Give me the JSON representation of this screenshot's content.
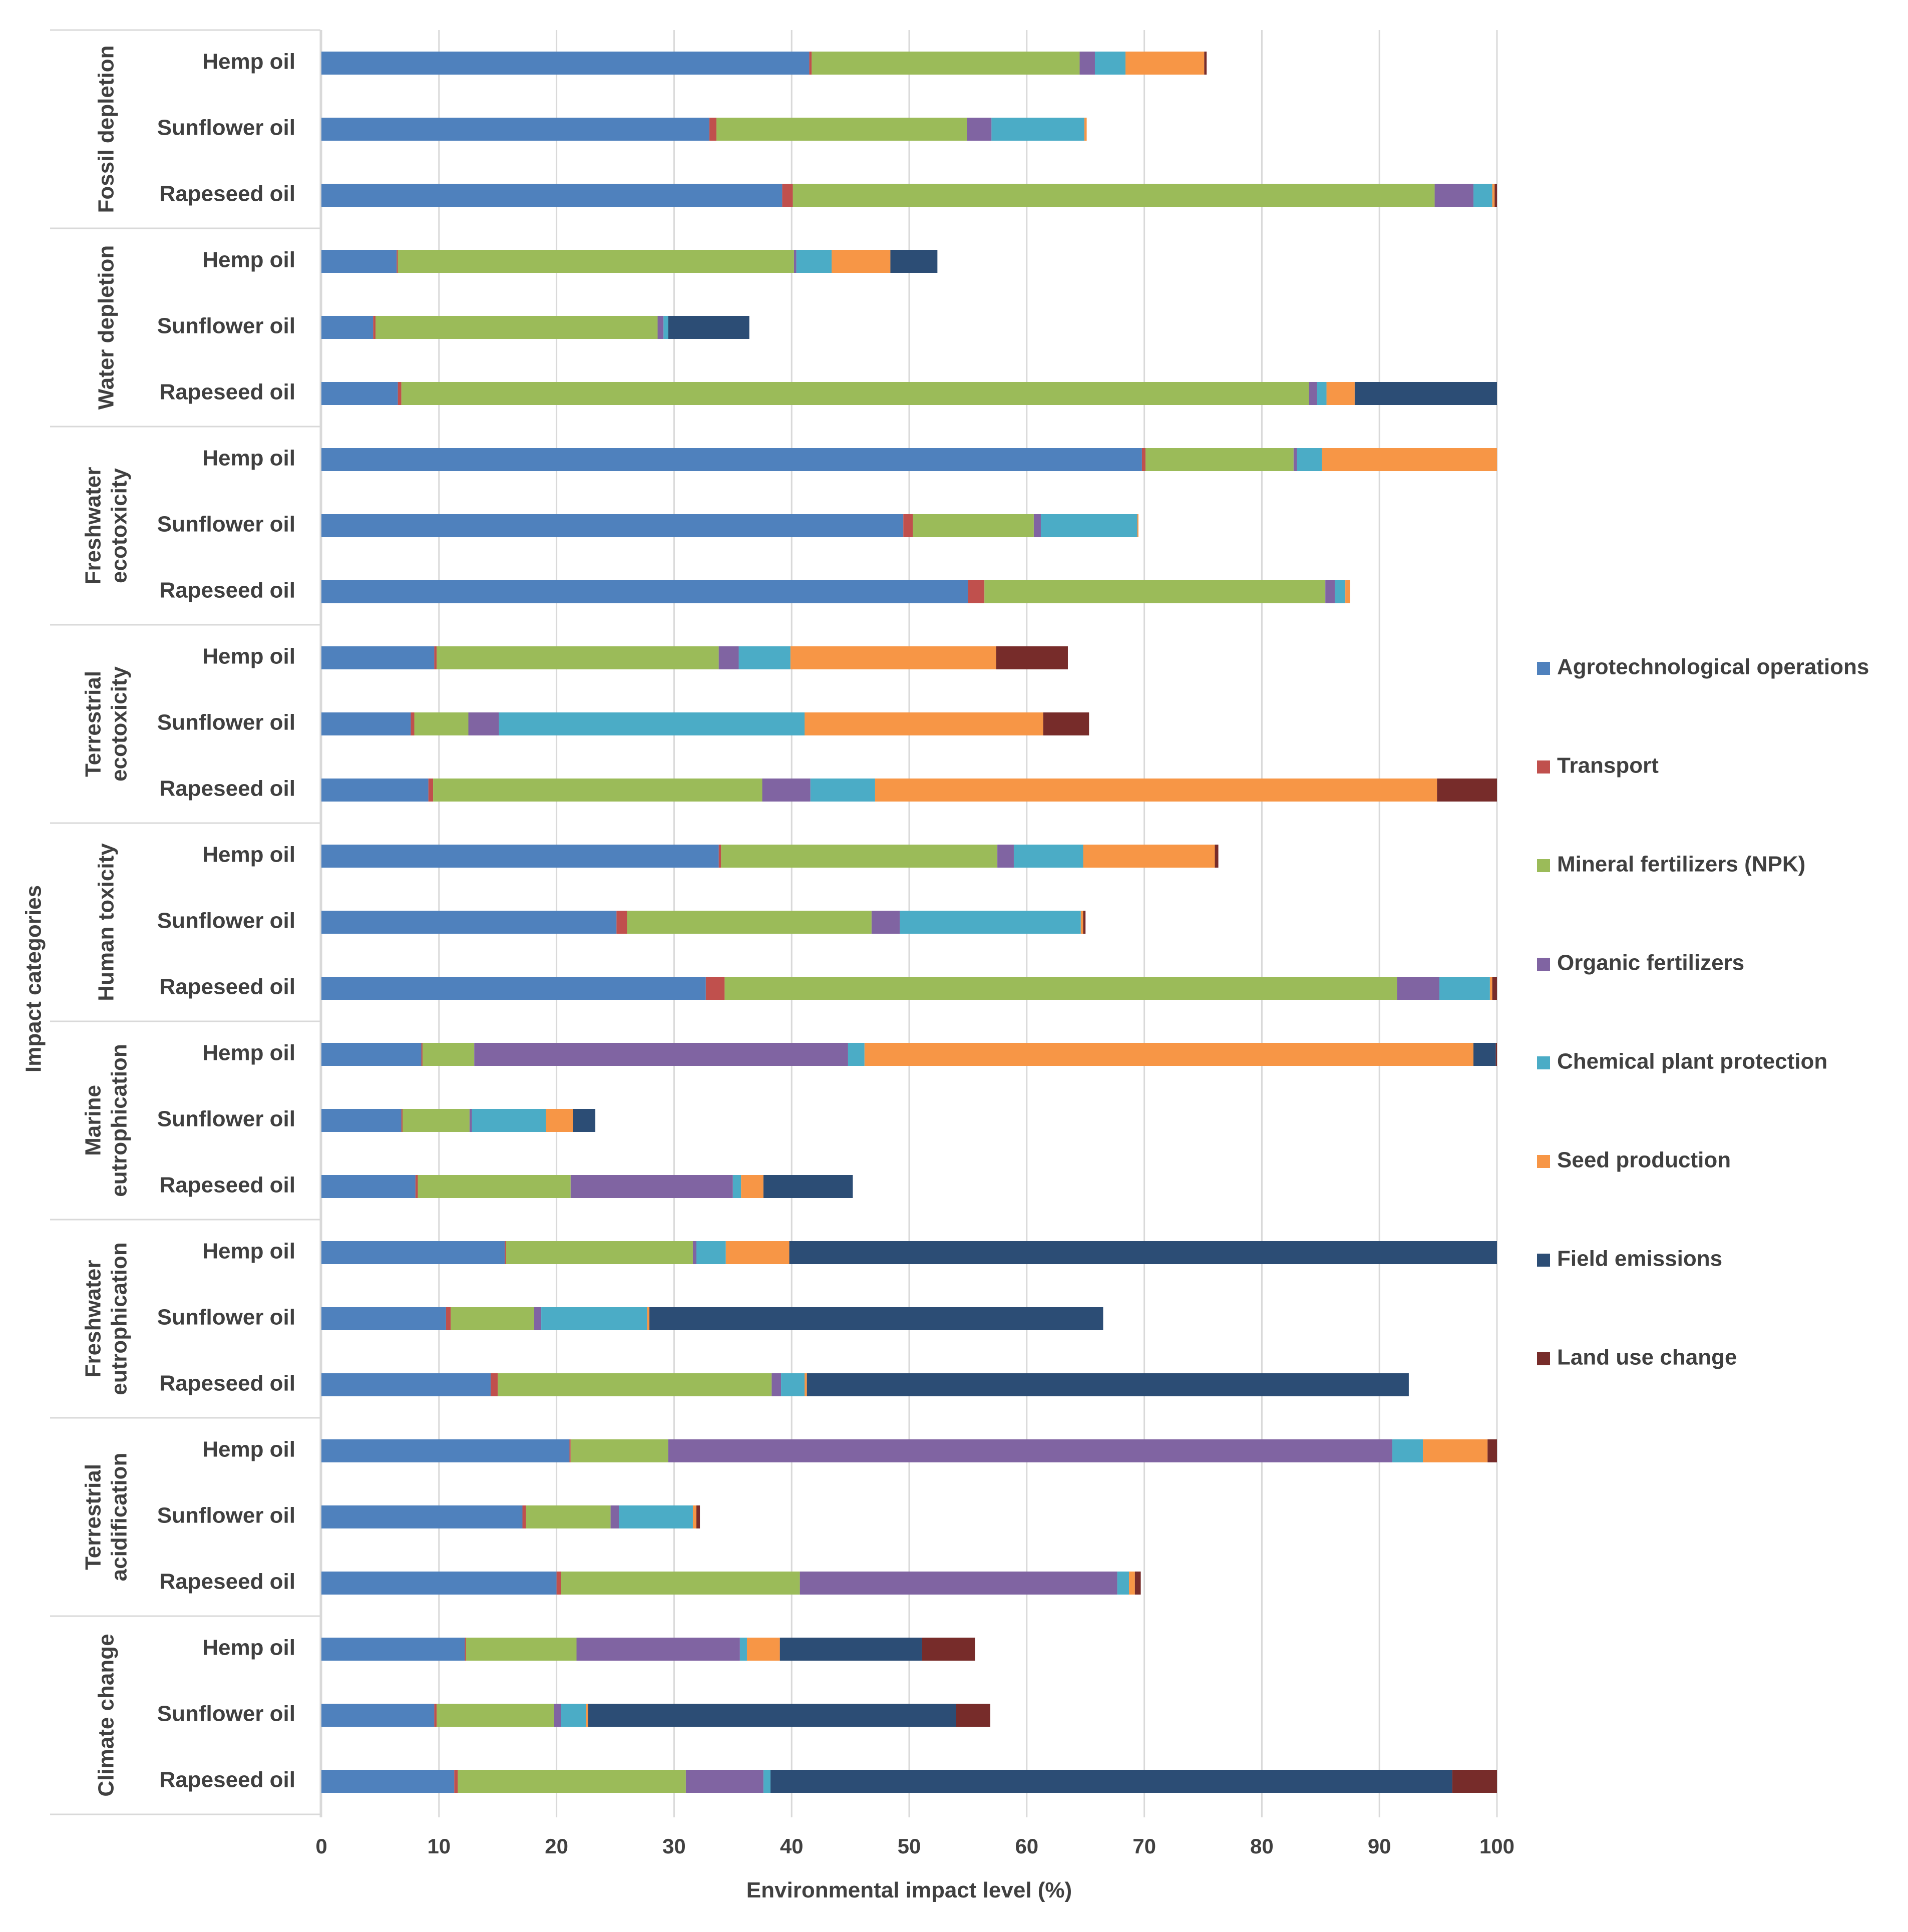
{
  "chart_data": {
    "type": "bar",
    "orientation": "horizontal",
    "stacked": true,
    "xlabel": "Environmental impact level (%)",
    "ylabel": "Impact categories",
    "xlim": [
      0,
      100
    ],
    "x_ticks": [
      "0",
      "10",
      "20",
      "30",
      "40",
      "50",
      "60",
      "70",
      "80",
      "90",
      "100"
    ],
    "grid": true,
    "legend_position": "right",
    "series": [
      {
        "name": "Agrotechnological operations",
        "color": "#4F81BD"
      },
      {
        "name": "Transport",
        "color": "#C0504D"
      },
      {
        "name": "Mineral fertilizers (NPK)",
        "color": "#9BBB59"
      },
      {
        "name": "Organic fertilizers",
        "color": "#8064A2"
      },
      {
        "name": "Chemical plant protection",
        "color": "#4BACC6"
      },
      {
        "name": "Seed production",
        "color": "#F79646"
      },
      {
        "name": "Field emissions",
        "color": "#2C4D75"
      },
      {
        "name": "Land use change",
        "color": "#772C2A"
      }
    ],
    "groups": [
      {
        "category": [
          "Fossil depletion"
        ],
        "bars": [
          {
            "label": "Hemp oil",
            "values": [
              41.5,
              0.2,
              22.8,
              1.3,
              2.6,
              6.7,
              0,
              0.2
            ]
          },
          {
            "label": "Sunflower oil",
            "values": [
              33.0,
              0.6,
              21.3,
              2.1,
              7.9,
              0.2,
              0,
              0
            ]
          },
          {
            "label": "Rapeseed oil",
            "values": [
              39.2,
              0.9,
              54.6,
              3.3,
              1.6,
              0.2,
              0,
              0.2
            ]
          }
        ]
      },
      {
        "category": [
          "Water depletion"
        ],
        "bars": [
          {
            "label": "Hemp oil",
            "values": [
              6.4,
              0.1,
              33.7,
              0.2,
              3.0,
              5.0,
              4.0,
              0
            ]
          },
          {
            "label": "Sunflower oil",
            "values": [
              4.4,
              0.2,
              24.0,
              0.5,
              0.4,
              0,
              6.9,
              0
            ]
          },
          {
            "label": "Rapeseed oil",
            "values": [
              6.5,
              0.3,
              77.2,
              0.7,
              0.8,
              2.4,
              12.1,
              0
            ]
          }
        ]
      },
      {
        "category": [
          "Freshwater",
          "ecotoxicity"
        ],
        "bars": [
          {
            "label": "Hemp oil",
            "values": [
              69.8,
              0.3,
              12.6,
              0.3,
              2.1,
              14.9,
              0,
              0
            ]
          },
          {
            "label": "Sunflower oil",
            "values": [
              49.5,
              0.8,
              10.3,
              0.6,
              8.2,
              0.1,
              0,
              0
            ]
          },
          {
            "label": "Rapeseed oil",
            "values": [
              55.0,
              1.4,
              29.0,
              0.8,
              0.9,
              0.4,
              0,
              0
            ]
          }
        ]
      },
      {
        "category": [
          "Terrestrial",
          "ecotoxicity"
        ],
        "bars": [
          {
            "label": "Hemp oil",
            "values": [
              9.6,
              0.2,
              24.0,
              1.7,
              4.4,
              17.5,
              0,
              6.1
            ]
          },
          {
            "label": "Sunflower oil",
            "values": [
              7.6,
              0.3,
              4.6,
              2.6,
              26.0,
              20.3,
              0,
              3.9
            ]
          },
          {
            "label": "Rapeseed oil",
            "values": [
              9.1,
              0.4,
              28.0,
              4.1,
              5.5,
              47.8,
              0,
              5.1
            ]
          }
        ]
      },
      {
        "category": [
          "Human toxicity"
        ],
        "bars": [
          {
            "label": "Hemp oil",
            "values": [
              33.8,
              0.2,
              23.5,
              1.4,
              5.9,
              11.2,
              0,
              0.3
            ]
          },
          {
            "label": "Sunflower oil",
            "values": [
              25.1,
              0.9,
              20.8,
              2.4,
              15.4,
              0.2,
              0,
              0.2
            ]
          },
          {
            "label": "Rapeseed oil",
            "values": [
              32.7,
              1.6,
              57.2,
              3.6,
              4.3,
              0.2,
              0,
              0.4
            ]
          }
        ]
      },
      {
        "category": [
          "Marine",
          "eutrophication"
        ],
        "bars": [
          {
            "label": "Hemp oil",
            "values": [
              8.5,
              0.1,
              4.4,
              31.8,
              1.4,
              51.8,
              1.9,
              0.1
            ]
          },
          {
            "label": "Sunflower oil",
            "values": [
              6.8,
              0.1,
              5.7,
              0.2,
              6.3,
              2.3,
              1.9,
              0
            ]
          },
          {
            "label": "Rapeseed oil",
            "values": [
              8.0,
              0.2,
              13.0,
              13.8,
              0.7,
              1.9,
              7.6,
              0
            ]
          }
        ]
      },
      {
        "category": [
          "Freshwater",
          "eutrophication"
        ],
        "bars": [
          {
            "label": "Hemp oil",
            "values": [
              15.6,
              0.1,
              15.9,
              0.3,
              2.5,
              5.4,
              60.2,
              0
            ]
          },
          {
            "label": "Sunflower oil",
            "values": [
              10.6,
              0.4,
              7.1,
              0.6,
              9.0,
              0.2,
              38.6,
              0
            ]
          },
          {
            "label": "Rapeseed oil",
            "values": [
              14.4,
              0.6,
              23.3,
              0.8,
              2.0,
              0.2,
              51.2,
              0
            ]
          }
        ]
      },
      {
        "category": [
          "Terrestrial",
          "acidification"
        ],
        "bars": [
          {
            "label": "Hemp oil",
            "values": [
              21.1,
              0.1,
              8.3,
              61.6,
              2.6,
              5.5,
              0,
              0.8
            ]
          },
          {
            "label": "Sunflower oil",
            "values": [
              17.1,
              0.3,
              7.2,
              0.7,
              6.3,
              0.3,
              0,
              0.3
            ]
          },
          {
            "label": "Rapeseed oil",
            "values": [
              20.0,
              0.4,
              20.3,
              27.0,
              1.0,
              0.5,
              0,
              0.5
            ]
          }
        ]
      },
      {
        "category": [
          "Climate change"
        ],
        "bars": [
          {
            "label": "Hemp oil",
            "values": [
              12.2,
              0.1,
              9.4,
              13.9,
              0.6,
              2.8,
              12.1,
              4.5
            ]
          },
          {
            "label": "Sunflower oil",
            "values": [
              9.6,
              0.2,
              10.0,
              0.6,
              2.1,
              0.2,
              31.3,
              2.9
            ]
          },
          {
            "label": "Rapeseed oil",
            "values": [
              11.3,
              0.3,
              19.4,
              6.6,
              0.6,
              0,
              58.0,
              3.8
            ]
          }
        ]
      }
    ]
  }
}
